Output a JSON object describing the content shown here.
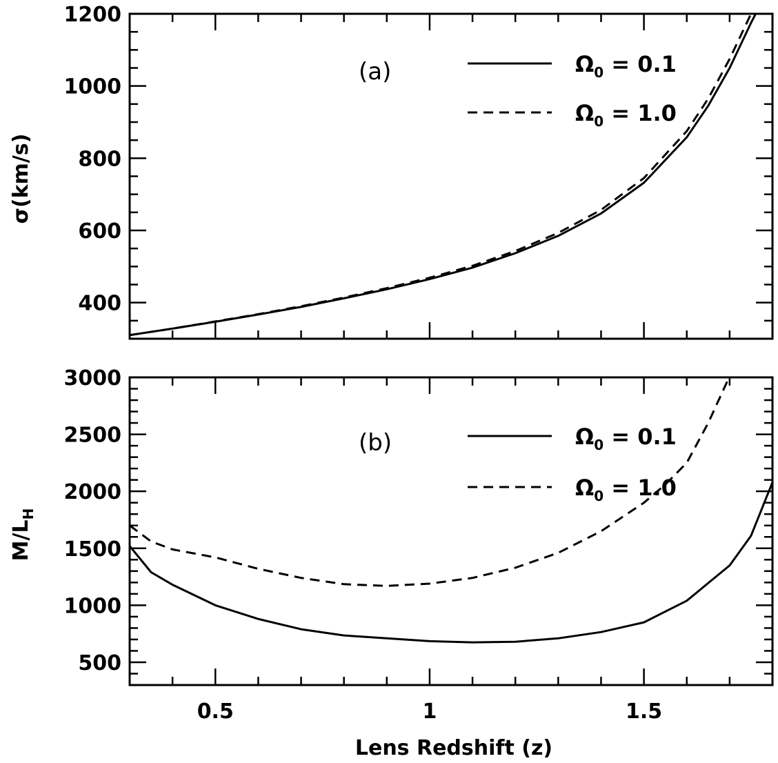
{
  "chart_data": [
    {
      "type": "line",
      "panel_tag": "(a)",
      "ylabel": "σ(km/s)",
      "xlim": [
        0.3,
        1.8
      ],
      "ylim": [
        300,
        1200
      ],
      "x_ticks": [
        "0.5",
        "1",
        "1.5"
      ],
      "y_ticks": [
        "400",
        "600",
        "800",
        "1000",
        "1200"
      ],
      "legend_position": "top-right",
      "series": [
        {
          "name": "Ω0 = 0.1",
          "style": "solid",
          "x": [
            0.3,
            0.4,
            0.5,
            0.6,
            0.7,
            0.8,
            0.9,
            1.0,
            1.1,
            1.2,
            1.3,
            1.4,
            1.5,
            1.6,
            1.65,
            1.7,
            1.75,
            1.8
          ],
          "y": [
            310,
            328,
            347,
            367,
            388,
            412,
            437,
            465,
            497,
            537,
            585,
            647,
            732,
            858,
            945,
            1050,
            1175,
            1290
          ]
        },
        {
          "name": "Ω0 = 1.0",
          "style": "dashed",
          "x": [
            0.3,
            0.4,
            0.5,
            0.6,
            0.7,
            0.8,
            0.9,
            1.0,
            1.1,
            1.2,
            1.3,
            1.4,
            1.5,
            1.6,
            1.65,
            1.7,
            1.75,
            1.79
          ],
          "y": [
            310,
            328,
            348,
            368,
            390,
            414,
            440,
            469,
            502,
            543,
            593,
            657,
            745,
            875,
            965,
            1075,
            1200,
            1210
          ]
        }
      ]
    },
    {
      "type": "line",
      "panel_tag": "(b)",
      "ylabel_main": "M/L",
      "ylabel_sub": "H",
      "xlabel": "Lens Redshift (z)",
      "xlim": [
        0.3,
        1.8
      ],
      "ylim": [
        300,
        3000
      ],
      "x_ticks": [
        "0.5",
        "1",
        "1.5"
      ],
      "y_ticks": [
        "500",
        "1000",
        "1500",
        "2000",
        "2500",
        "3000"
      ],
      "legend_position": "top-right",
      "series": [
        {
          "name": "Ω0 = 0.1",
          "style": "solid",
          "x": [
            0.3,
            0.35,
            0.4,
            0.5,
            0.6,
            0.7,
            0.8,
            0.9,
            1.0,
            1.1,
            1.2,
            1.3,
            1.4,
            1.5,
            1.6,
            1.7,
            1.75,
            1.8
          ],
          "y": [
            1520,
            1290,
            1180,
            1000,
            880,
            790,
            735,
            710,
            685,
            675,
            680,
            710,
            765,
            850,
            1040,
            1350,
            1610,
            2080
          ]
        },
        {
          "name": "Ω0 = 1.0",
          "style": "dashed",
          "x": [
            0.3,
            0.35,
            0.4,
            0.5,
            0.6,
            0.7,
            0.8,
            0.9,
            1.0,
            1.1,
            1.2,
            1.3,
            1.4,
            1.5,
            1.55,
            1.6,
            1.65,
            1.7
          ],
          "y": [
            1700,
            1560,
            1490,
            1420,
            1320,
            1240,
            1185,
            1170,
            1190,
            1240,
            1330,
            1460,
            1650,
            1900,
            2060,
            2250,
            2600,
            3010
          ]
        }
      ]
    }
  ],
  "legend": {
    "symbol": "Ω",
    "sub": "0",
    "entries": [
      "= 0.1",
      "= 1.0"
    ]
  }
}
